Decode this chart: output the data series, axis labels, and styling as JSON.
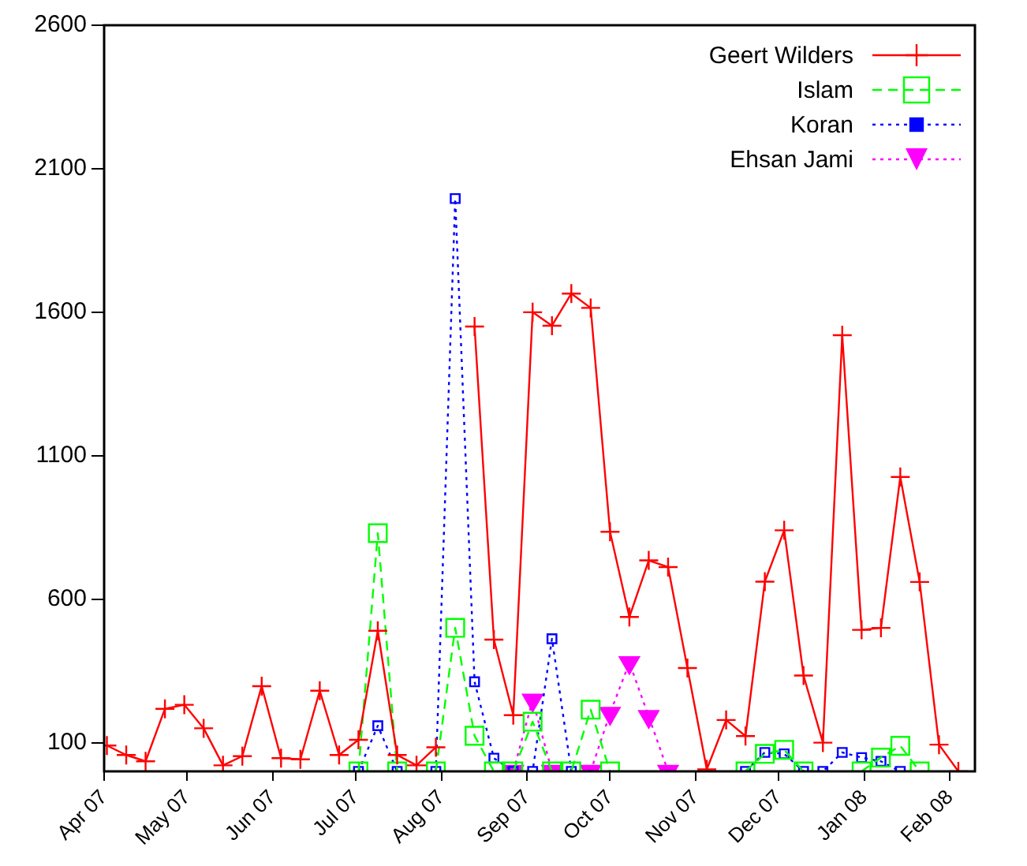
{
  "chart_data": {
    "type": "line",
    "x": [
      "2007-04-02",
      "2007-04-09",
      "2007-04-16",
      "2007-04-23",
      "2007-04-30",
      "2007-05-07",
      "2007-05-14",
      "2007-05-21",
      "2007-05-28",
      "2007-06-04",
      "2007-06-11",
      "2007-06-18",
      "2007-06-25",
      "2007-07-02",
      "2007-07-09",
      "2007-07-16",
      "2007-07-23",
      "2007-07-30",
      "2007-08-06",
      "2007-08-13",
      "2007-08-20",
      "2007-08-27",
      "2007-09-03",
      "2007-09-10",
      "2007-09-17",
      "2007-09-24",
      "2007-10-01",
      "2007-10-08",
      "2007-10-15",
      "2007-10-22",
      "2007-10-29",
      "2007-11-05",
      "2007-11-12",
      "2007-11-19",
      "2007-11-26",
      "2007-12-03",
      "2007-12-10",
      "2007-12-17",
      "2007-12-24",
      "2007-12-31",
      "2008-01-07",
      "2008-01-14",
      "2008-01-21",
      "2008-01-28",
      "2008-02-04"
    ],
    "series": [
      {
        "name": "Geert Wilders",
        "color": "#ff0000",
        "marker": "cross",
        "line_style": "solid",
        "values": [
          90,
          57,
          35,
          218,
          232,
          150,
          21,
          53,
          297,
          46,
          42,
          281,
          57,
          110,
          490,
          57,
          21,
          84,
          null,
          1550,
          459,
          196,
          1600,
          1553,
          1665,
          1615,
          835,
          538,
          735,
          712,
          360,
          7,
          179,
          123,
          661,
          840,
          334,
          100,
          1520,
          493,
          500,
          1026,
          660,
          93,
          0
        ]
      },
      {
        "name": "Islam",
        "color": "#00ff00",
        "marker": "square",
        "line_style": "dashed",
        "values": [
          null,
          null,
          null,
          null,
          null,
          null,
          null,
          null,
          null,
          null,
          null,
          null,
          null,
          0,
          830,
          0,
          null,
          0,
          500,
          124,
          0,
          0,
          173,
          0,
          0,
          215,
          0,
          null,
          null,
          null,
          null,
          null,
          null,
          0,
          61,
          75,
          0,
          null,
          null,
          0,
          48,
          89,
          0,
          null,
          null
        ]
      },
      {
        "name": "Koran",
        "color": "#0000ff",
        "marker": "square",
        "line_style": "dotted",
        "values": [
          null,
          null,
          null,
          null,
          null,
          null,
          null,
          null,
          null,
          null,
          null,
          null,
          null,
          0,
          159,
          0,
          null,
          0,
          1996,
          312,
          46,
          0,
          0,
          462,
          0,
          null,
          null,
          null,
          null,
          null,
          null,
          null,
          null,
          0,
          66,
          61,
          0,
          0,
          66,
          48,
          35,
          0,
          null,
          null,
          null
        ]
      },
      {
        "name": "Ehsan Jami",
        "color": "#ff00ff",
        "marker": "triangle",
        "line_style": "dotted",
        "values": [
          null,
          null,
          null,
          null,
          null,
          null,
          null,
          null,
          null,
          null,
          null,
          null,
          null,
          null,
          null,
          null,
          null,
          null,
          null,
          null,
          null,
          0,
          248,
          0,
          null,
          0,
          202,
          379,
          191,
          0,
          null,
          null,
          null,
          null,
          null,
          null,
          null,
          null,
          null,
          null,
          null,
          null,
          null,
          null,
          null
        ]
      }
    ],
    "xlim": [
      "2007-04-01",
      "2008-02-10"
    ],
    "xticks": [
      {
        "value": "2007-04-01",
        "label": "Apr 07"
      },
      {
        "value": "2007-05-01",
        "label": "May 07"
      },
      {
        "value": "2007-06-01",
        "label": "Jun 07"
      },
      {
        "value": "2007-07-01",
        "label": "Jul 07"
      },
      {
        "value": "2007-08-01",
        "label": "Aug 07"
      },
      {
        "value": "2007-09-01",
        "label": "Sep 07"
      },
      {
        "value": "2007-10-01",
        "label": "Oct 07"
      },
      {
        "value": "2007-11-01",
        "label": "Nov 07"
      },
      {
        "value": "2007-12-01",
        "label": "Dec 07"
      },
      {
        "value": "2008-01-01",
        "label": "Jan 08"
      },
      {
        "value": "2008-02-01",
        "label": "Feb 08"
      }
    ],
    "ylim": [
      0,
      2600
    ],
    "yticks": [
      100,
      600,
      1100,
      1600,
      2100,
      2600
    ],
    "grid": false,
    "legend": "top right"
  }
}
